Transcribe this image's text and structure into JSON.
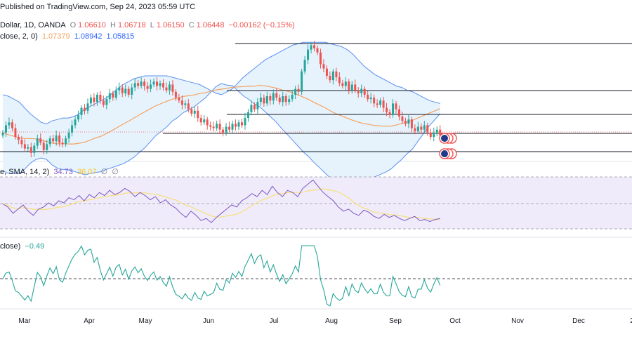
{
  "header": {
    "published": "Published on TradingView.com, Sep 24, 2023 05:59 UTC",
    "symbol": "Dollar, 1D, OANDA",
    "open_label": "O",
    "open": "1.06610",
    "high_label": "H",
    "high": "1.06718",
    "low_label": "L",
    "low": "1.06150",
    "close_label": "C",
    "close": "1.06448",
    "change": "−0.00162 (−0.15%)"
  },
  "bb_legend": {
    "label": "close, 2, 0)",
    "basis": "1.07379",
    "upper": "1.08942",
    "lower": "1.05815"
  },
  "rsi_legend": {
    "label": "e, SMA, 14, 2)",
    "rsi": "34.73",
    "sma": "36.07",
    "sym1": "∅",
    "sym2": "∅"
  },
  "osc_legend": {
    "label": "close)",
    "value": "−0.49"
  },
  "colors": {
    "up": "#26a69a",
    "down": "#ef5350",
    "bb_fill": "#e3f2fd",
    "bb_line": "#5b8ff0",
    "basis": "#f4a261",
    "rsi": "#7e57c2",
    "rsi_sma": "#f7e07a",
    "rsi_band": "#efebfa",
    "osc": "#26a69a"
  },
  "chart_data": [
    {
      "type": "candlestick",
      "title": "Dollar, 1D, OANDA",
      "x_ticks": [
        "Mar",
        "Apr",
        "May",
        "Jun",
        "Jul",
        "Aug",
        "Sep",
        "Oct",
        "Nov",
        "Dec",
        "2"
      ],
      "close": [
        1.066,
        1.071,
        1.073,
        1.069,
        1.063,
        1.061,
        1.058,
        1.055,
        1.056,
        1.052,
        1.057,
        1.062,
        1.059,
        1.054,
        1.058,
        1.062,
        1.06,
        1.064,
        1.059,
        1.058,
        1.062,
        1.066,
        1.071,
        1.075,
        1.078,
        1.083,
        1.081,
        1.086,
        1.09,
        1.087,
        1.092,
        1.088,
        1.085,
        1.089,
        1.093,
        1.09,
        1.095,
        1.097,
        1.093,
        1.096,
        1.092,
        1.097,
        1.1,
        1.098,
        1.101,
        1.098,
        1.096,
        1.099,
        1.101,
        1.098,
        1.1,
        1.097,
        1.095,
        1.099,
        1.094,
        1.09,
        1.088,
        1.085,
        1.086,
        1.082,
        1.079,
        1.081,
        1.076,
        1.073,
        1.075,
        1.071,
        1.07,
        1.069,
        1.072,
        1.068,
        1.066,
        1.07,
        1.068,
        1.072,
        1.07,
        1.073,
        1.071,
        1.076,
        1.08,
        1.085,
        1.082,
        1.087,
        1.09,
        1.086,
        1.091,
        1.088,
        1.093,
        1.09,
        1.087,
        1.091,
        1.087,
        1.089,
        1.092,
        1.096,
        1.094,
        1.108,
        1.116,
        1.123,
        1.126,
        1.124,
        1.121,
        1.113,
        1.11,
        1.105,
        1.102,
        1.108,
        1.104,
        1.1,
        1.098,
        1.101,
        1.095,
        1.099,
        1.095,
        1.093,
        1.096,
        1.092,
        1.089,
        1.09,
        1.086,
        1.085,
        1.088,
        1.083,
        1.08,
        1.078,
        1.086,
        1.082,
        1.077,
        1.074,
        1.072,
        1.075,
        1.069,
        1.067,
        1.07,
        1.068,
        1.071,
        1.066,
        1.063,
        1.066,
        1.068,
        1.064
      ],
      "bb_upper": [
        1.092,
        1.091,
        1.089,
        1.087,
        1.083,
        1.079,
        1.076,
        1.073,
        1.072,
        1.074,
        1.075,
        1.076,
        1.076,
        1.077,
        1.079,
        1.082,
        1.084,
        1.086,
        1.088,
        1.09,
        1.093,
        1.096,
        1.099,
        1.101,
        1.103,
        1.104,
        1.105,
        1.105,
        1.105,
        1.105,
        1.105,
        1.104,
        1.103,
        1.102,
        1.101,
        1.1,
        1.099,
        1.097,
        1.095,
        1.093,
        1.092,
        1.094,
        1.096,
        1.1,
        1.104,
        1.107,
        1.11,
        1.113,
        1.116,
        1.118,
        1.12,
        1.122,
        1.124,
        1.126,
        1.127,
        1.128,
        1.128,
        1.128,
        1.128,
        1.128,
        1.127,
        1.126,
        1.125,
        1.123,
        1.12,
        1.116,
        1.112,
        1.109,
        1.106,
        1.104,
        1.102,
        1.1,
        1.098,
        1.097,
        1.095,
        1.094,
        1.092,
        1.09,
        1.088,
        1.087,
        1.086
      ]
    },
    {
      "type": "line",
      "title": "RSI",
      "values": [
        49,
        46,
        40,
        44,
        48,
        42,
        38,
        44,
        46,
        50,
        47,
        52,
        50,
        55,
        53,
        57,
        52,
        58,
        55,
        60,
        57,
        62,
        58,
        60,
        64,
        61,
        56,
        60,
        57,
        53,
        56,
        50,
        53,
        48,
        45,
        40,
        36,
        42,
        38,
        33,
        35,
        31,
        36,
        40,
        44,
        48,
        46,
        52,
        55,
        59,
        56,
        62,
        58,
        66,
        60,
        56,
        62,
        60,
        56,
        64,
        68,
        72,
        66,
        60,
        56,
        52,
        46,
        42,
        44,
        40,
        38,
        43,
        41,
        37,
        35,
        39,
        36,
        38,
        35,
        33,
        35,
        37,
        33,
        34,
        32,
        34,
        35
      ]
    }
  ]
}
